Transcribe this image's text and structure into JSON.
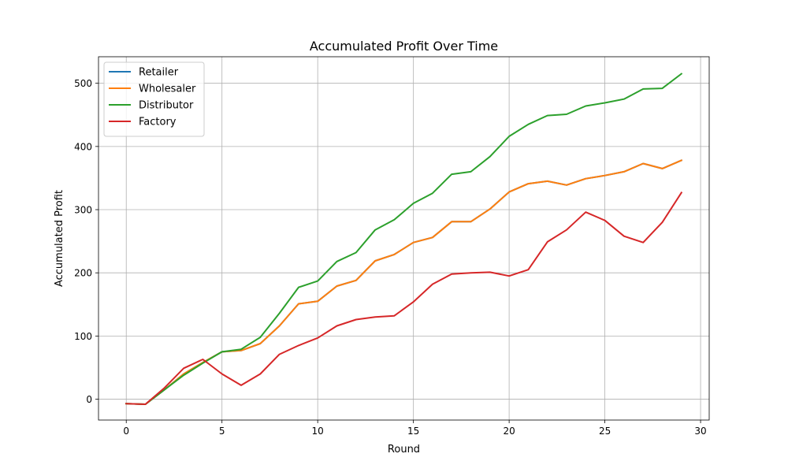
{
  "chart_data": {
    "type": "line",
    "title": "Accumulated Profit Over Time",
    "xlabel": "Round",
    "ylabel": "Accumulated Profit",
    "xlim": [
      -1.45,
      30.45
    ],
    "ylim": [
      -33,
      542
    ],
    "xticks": [
      0,
      5,
      10,
      15,
      20,
      25,
      30
    ],
    "yticks": [
      0,
      100,
      200,
      300,
      400,
      500
    ],
    "grid": true,
    "legend_position": "upper-left",
    "x": [
      0,
      1,
      2,
      3,
      4,
      5,
      6,
      7,
      8,
      9,
      10,
      11,
      12,
      13,
      14,
      15,
      16,
      17,
      18,
      19,
      20,
      21,
      22,
      23,
      24,
      25,
      26,
      27,
      28,
      29
    ],
    "series": [
      {
        "name": "Retailer",
        "color": "#1f77b4",
        "values": [
          -7,
          -8,
          15,
          40,
          58,
          75,
          77,
          88,
          116,
          151,
          155,
          179,
          188,
          219,
          229,
          248,
          256,
          281,
          281,
          301,
          328,
          341,
          345,
          339,
          349,
          354,
          360,
          373,
          365,
          378
        ]
      },
      {
        "name": "Wholesaler",
        "color": "#ff7f0e",
        "values": [
          -7,
          -8,
          15,
          40,
          58,
          75,
          77,
          88,
          116,
          151,
          155,
          179,
          188,
          219,
          229,
          248,
          256,
          281,
          281,
          301,
          328,
          341,
          345,
          339,
          349,
          354,
          360,
          373,
          365,
          378
        ]
      },
      {
        "name": "Distributor",
        "color": "#2ca02c",
        "values": [
          -7,
          -8,
          15,
          38,
          57,
          75,
          79,
          98,
          136,
          177,
          187,
          218,
          232,
          268,
          284,
          310,
          326,
          356,
          360,
          384,
          416,
          435,
          449,
          451,
          464,
          469,
          475,
          491,
          492,
          515
        ]
      },
      {
        "name": "Factory",
        "color": "#d62728",
        "values": [
          -7,
          -8,
          18,
          49,
          63,
          40,
          22,
          40,
          71,
          85,
          97,
          116,
          126,
          130,
          132,
          154,
          182,
          198,
          200,
          201,
          195,
          205,
          249,
          268,
          296,
          283,
          258,
          248,
          280,
          327
        ]
      }
    ]
  }
}
